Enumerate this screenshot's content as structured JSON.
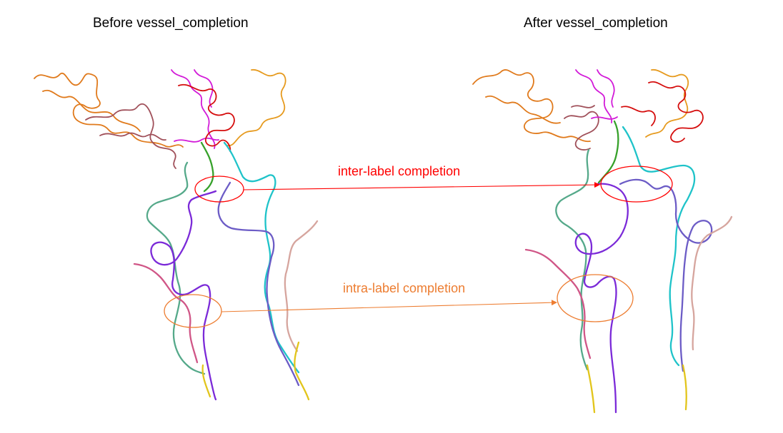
{
  "titles": {
    "before": "Before vessel_completion",
    "after": "After vessel_completion"
  },
  "annotations": {
    "inter": {
      "label": "inter-label completion",
      "color": "#ff0000"
    },
    "intra": {
      "label": "intra-label completion",
      "color": "#ed7d31"
    }
  },
  "vessel_colors": {
    "orange": "#e07a1c",
    "amber": "#e69a1e",
    "brown": "#a0505a",
    "red": "#d50d0d",
    "magenta": "#d21ad8",
    "green": "#36a12a",
    "cyan": "#1fc3c9",
    "teal_green": "#55a98a",
    "purple": "#7b2ad8",
    "slate_purple": "#6c5cc6",
    "pink": "#d05687",
    "tan": "#d6a59e",
    "yellow": "#e2c51c"
  }
}
